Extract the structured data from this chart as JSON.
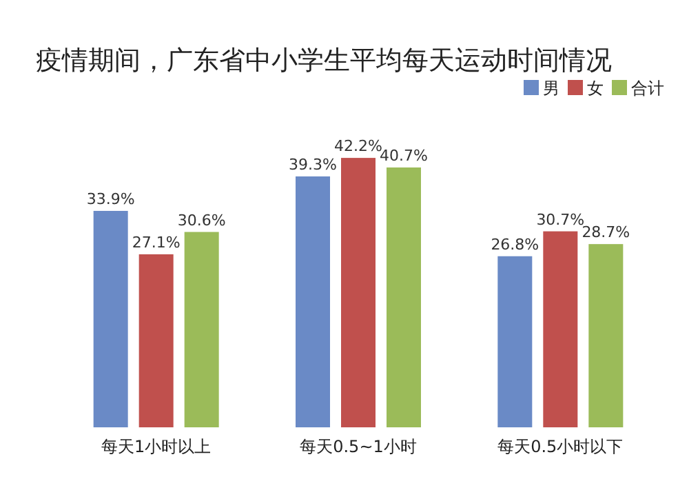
{
  "chart_data": {
    "type": "bar",
    "title": "疫情期间，广东省中小学生平均每天运动时间情况",
    "categories": [
      "每天1小时以上",
      "每天0.5~1小时",
      "每天0.5小时以下"
    ],
    "series": [
      {
        "name": "男",
        "color": "#6a8ac6",
        "values": [
          33.9,
          39.3,
          26.8
        ],
        "value_labels": [
          "33.9%",
          "39.3%",
          "26.8%"
        ]
      },
      {
        "name": "女",
        "color": "#c0504d",
        "values": [
          27.1,
          42.2,
          30.7
        ],
        "value_labels": [
          "27.1%",
          "42.2%",
          "30.7%"
        ]
      },
      {
        "name": "合计",
        "color": "#9bbb59",
        "values": [
          30.6,
          40.7,
          28.7
        ],
        "value_labels": [
          "30.6%",
          "40.7%",
          "28.7%"
        ]
      }
    ],
    "legend": "top right"
  }
}
